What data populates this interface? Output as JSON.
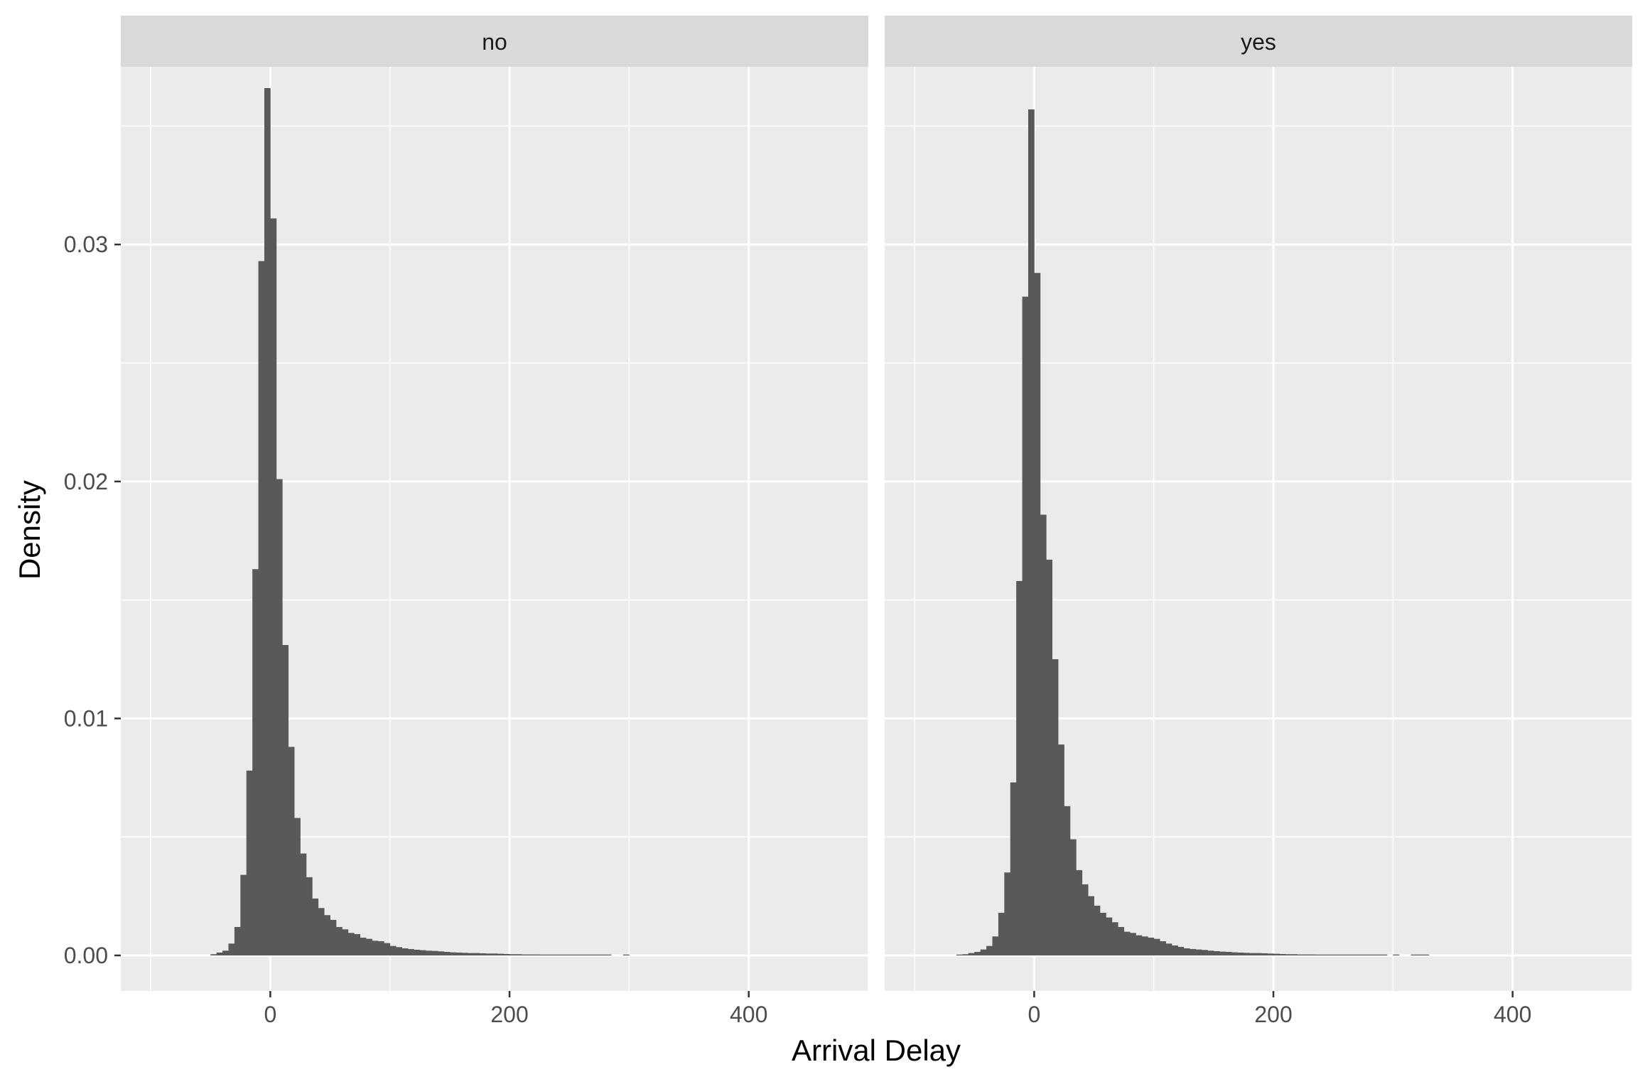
{
  "chart_data": {
    "type": "bar",
    "subtype": "faceted histogram",
    "xlabel": "Arrival Delay",
    "ylabel": "Density",
    "xlim": [
      -125,
      500
    ],
    "ylim": [
      -0.0015,
      0.0375
    ],
    "x_ticks": [
      0,
      200,
      400
    ],
    "x_tick_labels": [
      "0",
      "200",
      "400"
    ],
    "y_ticks": [
      0.0,
      0.01,
      0.02,
      0.03
    ],
    "y_tick_labels": [
      "0.00",
      "0.01",
      "0.02",
      "0.03"
    ],
    "bin_width": 5,
    "grid": true,
    "legend": "none",
    "colors": {
      "panel_background": "#ebebeb",
      "strip_background": "#d9d9d9",
      "bar_fill": "#595959",
      "grid": "#ffffff",
      "text": "#4d4d4d",
      "title_text": "#000000"
    },
    "facets": [
      {
        "label": "no",
        "bins": [
          [
            -50,
            5e-05
          ],
          [
            -45,
            0.00012
          ],
          [
            -40,
            0.0002
          ],
          [
            -35,
            0.0005
          ],
          [
            -30,
            0.0012
          ],
          [
            -25,
            0.0034
          ],
          [
            -20,
            0.0078
          ],
          [
            -15,
            0.0163
          ],
          [
            -10,
            0.0293
          ],
          [
            -5,
            0.0366
          ],
          [
            0,
            0.0311
          ],
          [
            5,
            0.0201
          ],
          [
            10,
            0.0131
          ],
          [
            15,
            0.0088
          ],
          [
            20,
            0.0058
          ],
          [
            25,
            0.0043
          ],
          [
            30,
            0.0033
          ],
          [
            35,
            0.0024
          ],
          [
            40,
            0.002
          ],
          [
            45,
            0.0017
          ],
          [
            50,
            0.0015
          ],
          [
            55,
            0.0012
          ],
          [
            60,
            0.0011
          ],
          [
            65,
            0.00095
          ],
          [
            70,
            0.0009
          ],
          [
            75,
            0.00075
          ],
          [
            80,
            0.0007
          ],
          [
            85,
            0.00062
          ],
          [
            90,
            0.0006
          ],
          [
            95,
            0.00052
          ],
          [
            100,
            0.0004
          ],
          [
            105,
            0.00035
          ],
          [
            110,
            0.0003
          ],
          [
            115,
            0.00027
          ],
          [
            120,
            0.00024
          ],
          [
            125,
            0.00022
          ],
          [
            130,
            0.0002
          ],
          [
            135,
            0.00019
          ],
          [
            140,
            0.00017
          ],
          [
            145,
            0.00015
          ],
          [
            150,
            0.00013
          ],
          [
            155,
            0.00012
          ],
          [
            160,
            0.00011
          ],
          [
            165,
            0.0001
          ],
          [
            170,
            0.0001
          ],
          [
            175,
            9e-05
          ],
          [
            180,
            8e-05
          ],
          [
            185,
            8e-05
          ],
          [
            190,
            7e-05
          ],
          [
            195,
            6e-05
          ],
          [
            200,
            5e-05
          ],
          [
            205,
            5e-05
          ],
          [
            210,
            4e-05
          ],
          [
            215,
            4e-05
          ],
          [
            220,
            4e-05
          ],
          [
            225,
            3e-05
          ],
          [
            230,
            3e-05
          ],
          [
            235,
            3e-05
          ],
          [
            240,
            2e-05
          ],
          [
            245,
            2e-05
          ],
          [
            250,
            2e-05
          ],
          [
            255,
            2e-05
          ],
          [
            260,
            2e-05
          ],
          [
            265,
            2e-05
          ],
          [
            270,
            2e-05
          ],
          [
            275,
            1e-05
          ],
          [
            280,
            1e-05
          ],
          [
            295,
            1e-05
          ]
        ]
      },
      {
        "label": "yes",
        "bins": [
          [
            -65,
            3e-05
          ],
          [
            -60,
            5e-05
          ],
          [
            -55,
            0.0001
          ],
          [
            -50,
            0.00015
          ],
          [
            -45,
            0.00025
          ],
          [
            -40,
            0.0004
          ],
          [
            -35,
            0.0008
          ],
          [
            -30,
            0.0018
          ],
          [
            -25,
            0.0035
          ],
          [
            -20,
            0.0073
          ],
          [
            -15,
            0.0158
          ],
          [
            -10,
            0.0278
          ],
          [
            -5,
            0.0357
          ],
          [
            0,
            0.0288
          ],
          [
            5,
            0.0186
          ],
          [
            10,
            0.0167
          ],
          [
            15,
            0.0125
          ],
          [
            20,
            0.0089
          ],
          [
            25,
            0.0063
          ],
          [
            30,
            0.0049
          ],
          [
            35,
            0.0036
          ],
          [
            40,
            0.003
          ],
          [
            45,
            0.0025
          ],
          [
            50,
            0.0021
          ],
          [
            55,
            0.0018
          ],
          [
            60,
            0.0016
          ],
          [
            65,
            0.0014
          ],
          [
            70,
            0.0012
          ],
          [
            75,
            0.001
          ],
          [
            80,
            0.00095
          ],
          [
            85,
            0.00085
          ],
          [
            90,
            0.0008
          ],
          [
            95,
            0.00075
          ],
          [
            100,
            0.0007
          ],
          [
            105,
            0.0006
          ],
          [
            110,
            0.0005
          ],
          [
            115,
            0.00042
          ],
          [
            120,
            0.00036
          ],
          [
            125,
            0.0003
          ],
          [
            130,
            0.00027
          ],
          [
            135,
            0.00025
          ],
          [
            140,
            0.00023
          ],
          [
            145,
            0.0002
          ],
          [
            150,
            0.00018
          ],
          [
            155,
            0.00016
          ],
          [
            160,
            0.00015
          ],
          [
            165,
            0.00013
          ],
          [
            170,
            0.00012
          ],
          [
            175,
            0.00011
          ],
          [
            180,
            0.0001
          ],
          [
            185,
            0.0001
          ],
          [
            190,
            9e-05
          ],
          [
            195,
            8e-05
          ],
          [
            200,
            7e-05
          ],
          [
            205,
            6e-05
          ],
          [
            210,
            5e-05
          ],
          [
            215,
            5e-05
          ],
          [
            220,
            4e-05
          ],
          [
            225,
            4e-05
          ],
          [
            230,
            4e-05
          ],
          [
            235,
            3e-05
          ],
          [
            240,
            3e-05
          ],
          [
            245,
            3e-05
          ],
          [
            250,
            2e-05
          ],
          [
            255,
            2e-05
          ],
          [
            260,
            2e-05
          ],
          [
            265,
            2e-05
          ],
          [
            270,
            2e-05
          ],
          [
            275,
            2e-05
          ],
          [
            280,
            1e-05
          ],
          [
            285,
            1e-05
          ],
          [
            290,
            1e-05
          ],
          [
            300,
            1e-05
          ],
          [
            315,
            1e-05
          ],
          [
            320,
            1e-05
          ],
          [
            325,
            1e-05
          ]
        ]
      }
    ]
  }
}
